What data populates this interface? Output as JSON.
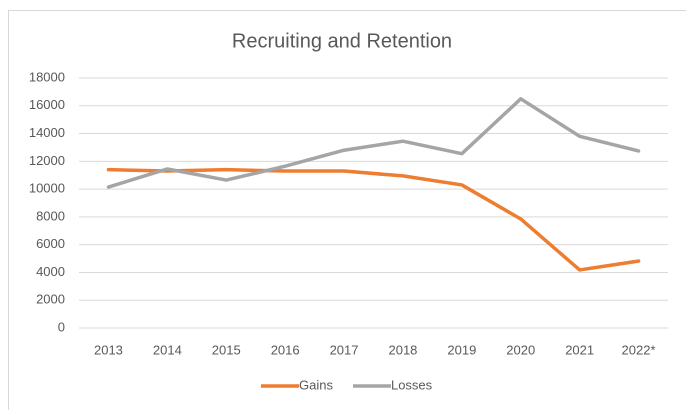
{
  "chart_data": {
    "type": "line",
    "title": "Recruiting and Retention",
    "categories": [
      "2013",
      "2014",
      "2015",
      "2016",
      "2017",
      "2018",
      "2019",
      "2020",
      "2021",
      "2022*"
    ],
    "series": [
      {
        "name": "Gains",
        "color": "#ed7d31",
        "values": [
          11400,
          11300,
          11400,
          11300,
          11300,
          10950,
          10300,
          7850,
          4180,
          4820
        ]
      },
      {
        "name": "Losses",
        "color": "#a5a5a5",
        "values": [
          10150,
          11450,
          10650,
          11650,
          12800,
          13450,
          12550,
          16500,
          13800,
          12750
        ]
      }
    ],
    "ylim": [
      0,
      18000
    ],
    "yticks": [
      0,
      2000,
      4000,
      6000,
      8000,
      10000,
      12000,
      14000,
      16000,
      18000
    ],
    "grid": true,
    "legend": "bottom"
  }
}
